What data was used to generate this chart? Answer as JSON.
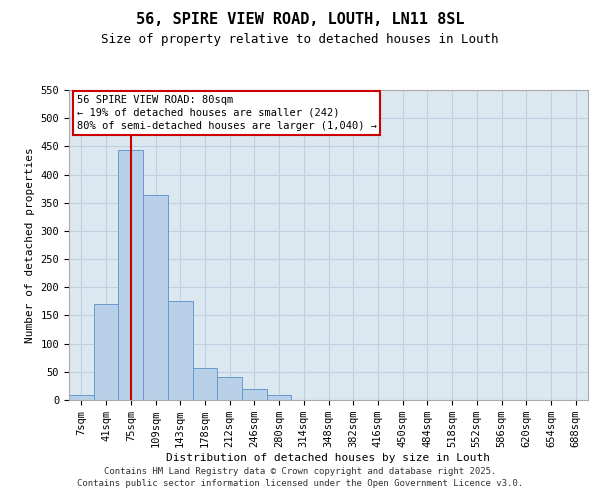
{
  "title": "56, SPIRE VIEW ROAD, LOUTH, LN11 8SL",
  "subtitle": "Size of property relative to detached houses in Louth",
  "xlabel": "Distribution of detached houses by size in Louth",
  "ylabel": "Number of detached properties",
  "footer_line1": "Contains HM Land Registry data © Crown copyright and database right 2025.",
  "footer_line2": "Contains public sector information licensed under the Open Government Licence v3.0.",
  "bin_labels": [
    "7sqm",
    "41sqm",
    "75sqm",
    "109sqm",
    "143sqm",
    "178sqm",
    "212sqm",
    "246sqm",
    "280sqm",
    "314sqm",
    "348sqm",
    "382sqm",
    "416sqm",
    "450sqm",
    "484sqm",
    "518sqm",
    "552sqm",
    "586sqm",
    "620sqm",
    "654sqm",
    "688sqm"
  ],
  "bar_values": [
    8,
    170,
    443,
    363,
    175,
    57,
    40,
    20,
    8,
    0,
    0,
    0,
    0,
    0,
    0,
    0,
    0,
    0,
    0,
    0,
    0
  ],
  "bar_color": "#b8d0e8",
  "bar_edge_color": "#6699cc",
  "grid_color": "#c0d0e0",
  "background_color": "#dce8f0",
  "annotation_box_text": "56 SPIRE VIEW ROAD: 80sqm\n← 19% of detached houses are smaller (242)\n80% of semi-detached houses are larger (1,040) →",
  "annotation_box_color": "#cc0000",
  "annotation_box_fill": "#ffffff",
  "property_line_idx": 2,
  "property_line_color": "#cc0000",
  "ylim": [
    0,
    550
  ],
  "yticks": [
    0,
    50,
    100,
    150,
    200,
    250,
    300,
    350,
    400,
    450,
    500,
    550
  ],
  "title_fontsize": 11,
  "subtitle_fontsize": 9,
  "axis_label_fontsize": 8,
  "tick_fontsize": 7.5,
  "footer_fontsize": 6.5
}
